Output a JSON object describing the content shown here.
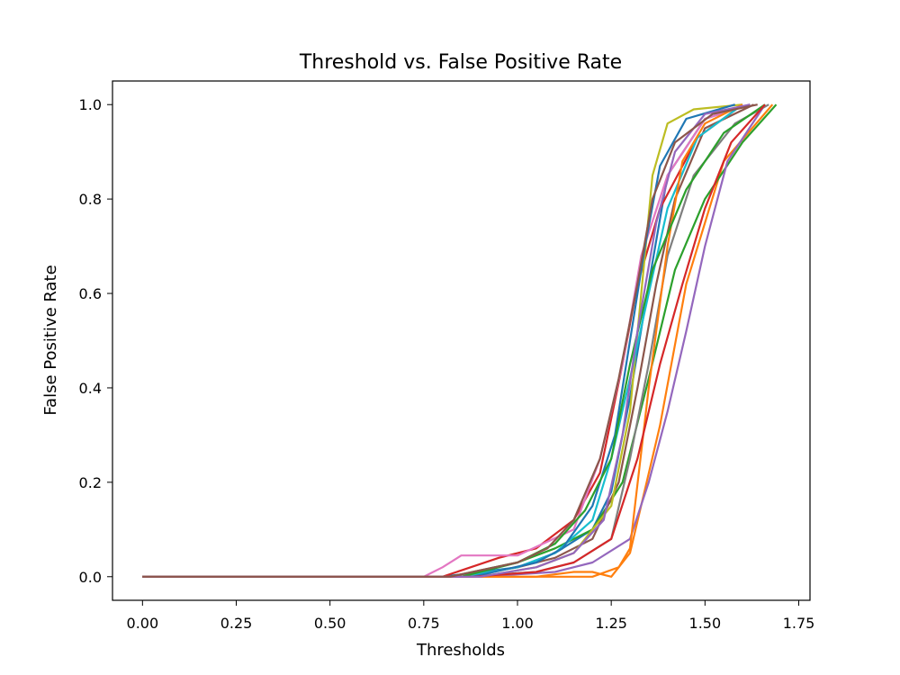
{
  "chart_data": {
    "type": "line",
    "title": "Threshold vs. False Positive Rate",
    "xlabel": "Thresholds",
    "ylabel": "False Positive Rate",
    "xlim": [
      -0.08,
      1.78
    ],
    "ylim": [
      -0.05,
      1.05
    ],
    "xticks": [
      0.0,
      0.25,
      0.5,
      0.75,
      1.0,
      1.25,
      1.5,
      1.75
    ],
    "xtick_labels": [
      "0.00",
      "0.25",
      "0.50",
      "0.75",
      "1.00",
      "1.25",
      "1.50",
      "1.75"
    ],
    "yticks": [
      0.0,
      0.2,
      0.4,
      0.6,
      0.8,
      1.0
    ],
    "ytick_labels": [
      "0.0",
      "0.2",
      "0.4",
      "0.6",
      "0.8",
      "1.0"
    ],
    "grid": false,
    "legend": "none",
    "palette": [
      "#1f77b4",
      "#ff7f0e",
      "#2ca02c",
      "#d62728",
      "#9467bd",
      "#8c564b",
      "#e377c2",
      "#7f7f7f",
      "#bcbd22",
      "#17becf"
    ],
    "series": [
      {
        "x": [
          0,
          0.8,
          1.0,
          1.1,
          1.2,
          1.25,
          1.3,
          1.35,
          1.4,
          1.5,
          1.62
        ],
        "y": [
          0,
          0,
          0.02,
          0.05,
          0.1,
          0.18,
          0.38,
          0.62,
          0.85,
          0.97,
          1.0
        ]
      },
      {
        "x": [
          0,
          0.85,
          1.05,
          1.15,
          1.2,
          1.25,
          1.3,
          1.38,
          1.45,
          1.55,
          1.68
        ],
        "y": [
          0,
          0,
          0,
          0.01,
          0.01,
          0.0,
          0.05,
          0.32,
          0.62,
          0.88,
          1.0
        ]
      },
      {
        "x": [
          0,
          0.82,
          1.0,
          1.1,
          1.2,
          1.28,
          1.35,
          1.42,
          1.5,
          1.6,
          1.69
        ],
        "y": [
          0,
          0,
          0.03,
          0.06,
          0.1,
          0.2,
          0.42,
          0.65,
          0.8,
          0.92,
          1.0
        ]
      },
      {
        "x": [
          0,
          0.8,
          0.95,
          1.05,
          1.15,
          1.22,
          1.28,
          1.32,
          1.38,
          1.48,
          1.6
        ],
        "y": [
          0,
          0,
          0.04,
          0.06,
          0.12,
          0.22,
          0.45,
          0.62,
          0.78,
          0.93,
          1.0
        ]
      },
      {
        "x": [
          0,
          0.9,
          1.1,
          1.2,
          1.3,
          1.35,
          1.4,
          1.45,
          1.5,
          1.56,
          1.66
        ],
        "y": [
          0,
          0,
          0.01,
          0.03,
          0.08,
          0.2,
          0.35,
          0.52,
          0.7,
          0.88,
          1.0
        ]
      },
      {
        "x": [
          0,
          0.85,
          1.0,
          1.1,
          1.2,
          1.27,
          1.32,
          1.37,
          1.42,
          1.5,
          1.63
        ],
        "y": [
          0,
          0,
          0.02,
          0.04,
          0.08,
          0.2,
          0.4,
          0.62,
          0.8,
          0.95,
          1.0
        ]
      },
      {
        "x": [
          0,
          0.75,
          0.8,
          0.85,
          1.0,
          1.15,
          1.22,
          1.28,
          1.33,
          1.4,
          1.5,
          1.62
        ],
        "y": [
          0,
          0,
          0.02,
          0.045,
          0.045,
          0.1,
          0.25,
          0.45,
          0.68,
          0.85,
          0.97,
          1.0
        ]
      },
      {
        "x": [
          0,
          0.85,
          1.05,
          1.15,
          1.25,
          1.3,
          1.35,
          1.4,
          1.47,
          1.58,
          1.67
        ],
        "y": [
          0,
          0,
          0.01,
          0.03,
          0.08,
          0.25,
          0.45,
          0.68,
          0.85,
          0.96,
          1.0
        ]
      },
      {
        "x": [
          0,
          0.9,
          1.05,
          1.15,
          1.25,
          1.3,
          1.33,
          1.36,
          1.4,
          1.47,
          1.6
        ],
        "y": [
          0,
          0,
          0.02,
          0.05,
          0.15,
          0.35,
          0.6,
          0.85,
          0.96,
          0.99,
          1.0
        ]
      },
      {
        "x": [
          0,
          0.85,
          1.0,
          1.1,
          1.2,
          1.25,
          1.3,
          1.35,
          1.4,
          1.48,
          1.6
        ],
        "y": [
          0,
          0,
          0.02,
          0.05,
          0.12,
          0.25,
          0.42,
          0.6,
          0.78,
          0.93,
          1.0
        ]
      },
      {
        "x": [
          0,
          0.88,
          1.05,
          1.12,
          1.2,
          1.26,
          1.3,
          1.34,
          1.38,
          1.45,
          1.58
        ],
        "y": [
          0,
          0,
          0.03,
          0.06,
          0.15,
          0.3,
          0.5,
          0.7,
          0.87,
          0.97,
          1.0
        ]
      },
      {
        "x": [
          0,
          0.95,
          1.1,
          1.2,
          1.27,
          1.3,
          1.35,
          1.4,
          1.44,
          1.5,
          1.6
        ],
        "y": [
          0,
          0,
          0.0,
          0.0,
          0.02,
          0.06,
          0.4,
          0.7,
          0.88,
          0.96,
          1.0
        ]
      },
      {
        "x": [
          0,
          0.85,
          1.0,
          1.1,
          1.18,
          1.25,
          1.3,
          1.36,
          1.45,
          1.55,
          1.66
        ],
        "y": [
          0,
          0,
          0.03,
          0.07,
          0.14,
          0.25,
          0.45,
          0.65,
          0.82,
          0.94,
          1.0
        ]
      },
      {
        "x": [
          0,
          0.88,
          1.05,
          1.15,
          1.25,
          1.32,
          1.38,
          1.44,
          1.5,
          1.57,
          1.66
        ],
        "y": [
          0,
          0,
          0.01,
          0.03,
          0.08,
          0.25,
          0.45,
          0.62,
          0.78,
          0.92,
          1.0
        ]
      },
      {
        "x": [
          0,
          0.9,
          1.05,
          1.15,
          1.23,
          1.28,
          1.32,
          1.37,
          1.42,
          1.5,
          1.62
        ],
        "y": [
          0,
          0,
          0.02,
          0.05,
          0.12,
          0.3,
          0.52,
          0.75,
          0.9,
          0.98,
          1.0
        ]
      },
      {
        "x": [
          0,
          0.82,
          1.0,
          1.08,
          1.15,
          1.22,
          1.27,
          1.32,
          1.36,
          1.42,
          1.52,
          1.64
        ],
        "y": [
          0,
          0,
          0.03,
          0.06,
          0.12,
          0.25,
          0.42,
          0.62,
          0.8,
          0.92,
          0.98,
          1.0
        ]
      }
    ]
  }
}
